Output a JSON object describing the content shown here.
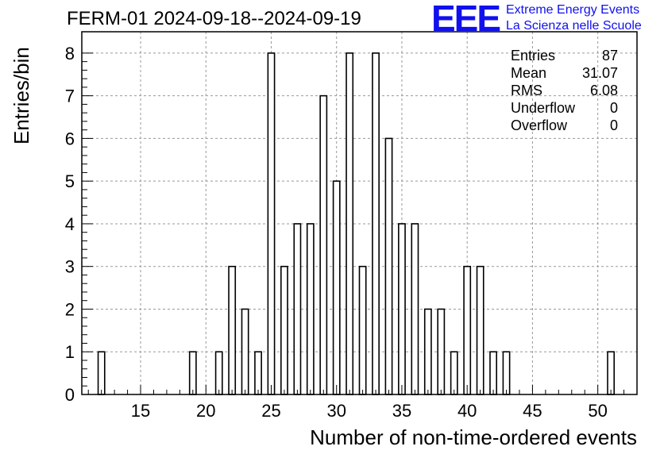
{
  "chart_data": {
    "type": "bar",
    "title": "FERM-01 2024-09-18--2024-09-19",
    "xlabel": "Number of non-time-ordered events",
    "ylabel": "Entries/bin",
    "xlim": [
      10.5,
      53
    ],
    "ylim": [
      0,
      8.5
    ],
    "grid": true,
    "x_ticks": [
      15,
      20,
      25,
      30,
      35,
      40,
      45,
      50
    ],
    "y_ticks": [
      0,
      1,
      2,
      3,
      4,
      5,
      6,
      7,
      8
    ],
    "bins": [
      {
        "x": 12,
        "count": 1
      },
      {
        "x": 19,
        "count": 1
      },
      {
        "x": 21,
        "count": 1
      },
      {
        "x": 22,
        "count": 3
      },
      {
        "x": 23,
        "count": 2
      },
      {
        "x": 24,
        "count": 1
      },
      {
        "x": 25,
        "count": 8
      },
      {
        "x": 26,
        "count": 3
      },
      {
        "x": 27,
        "count": 4
      },
      {
        "x": 28,
        "count": 4
      },
      {
        "x": 29,
        "count": 7
      },
      {
        "x": 30,
        "count": 5
      },
      {
        "x": 31,
        "count": 8
      },
      {
        "x": 32,
        "count": 3
      },
      {
        "x": 33,
        "count": 8
      },
      {
        "x": 34,
        "count": 6
      },
      {
        "x": 35,
        "count": 4
      },
      {
        "x": 36,
        "count": 4
      },
      {
        "x": 37,
        "count": 2
      },
      {
        "x": 38,
        "count": 2
      },
      {
        "x": 39,
        "count": 1
      },
      {
        "x": 40,
        "count": 3
      },
      {
        "x": 41,
        "count": 3
      },
      {
        "x": 42,
        "count": 1
      },
      {
        "x": 43,
        "count": 1
      },
      {
        "x": 51,
        "count": 1
      }
    ],
    "stats": [
      {
        "key": "Entries",
        "value": "87"
      },
      {
        "key": "Mean",
        "value": "31.07"
      },
      {
        "key": "RMS",
        "value": "6.08"
      },
      {
        "key": "Underflow",
        "value": "0"
      },
      {
        "key": "Overflow",
        "value": "0"
      }
    ],
    "bar_color": "#000000"
  },
  "logo": {
    "mark": "EEE",
    "line1": "Extreme Energy Events",
    "line2": "La Scienza nelle Scuole",
    "color": "#1010ee"
  }
}
